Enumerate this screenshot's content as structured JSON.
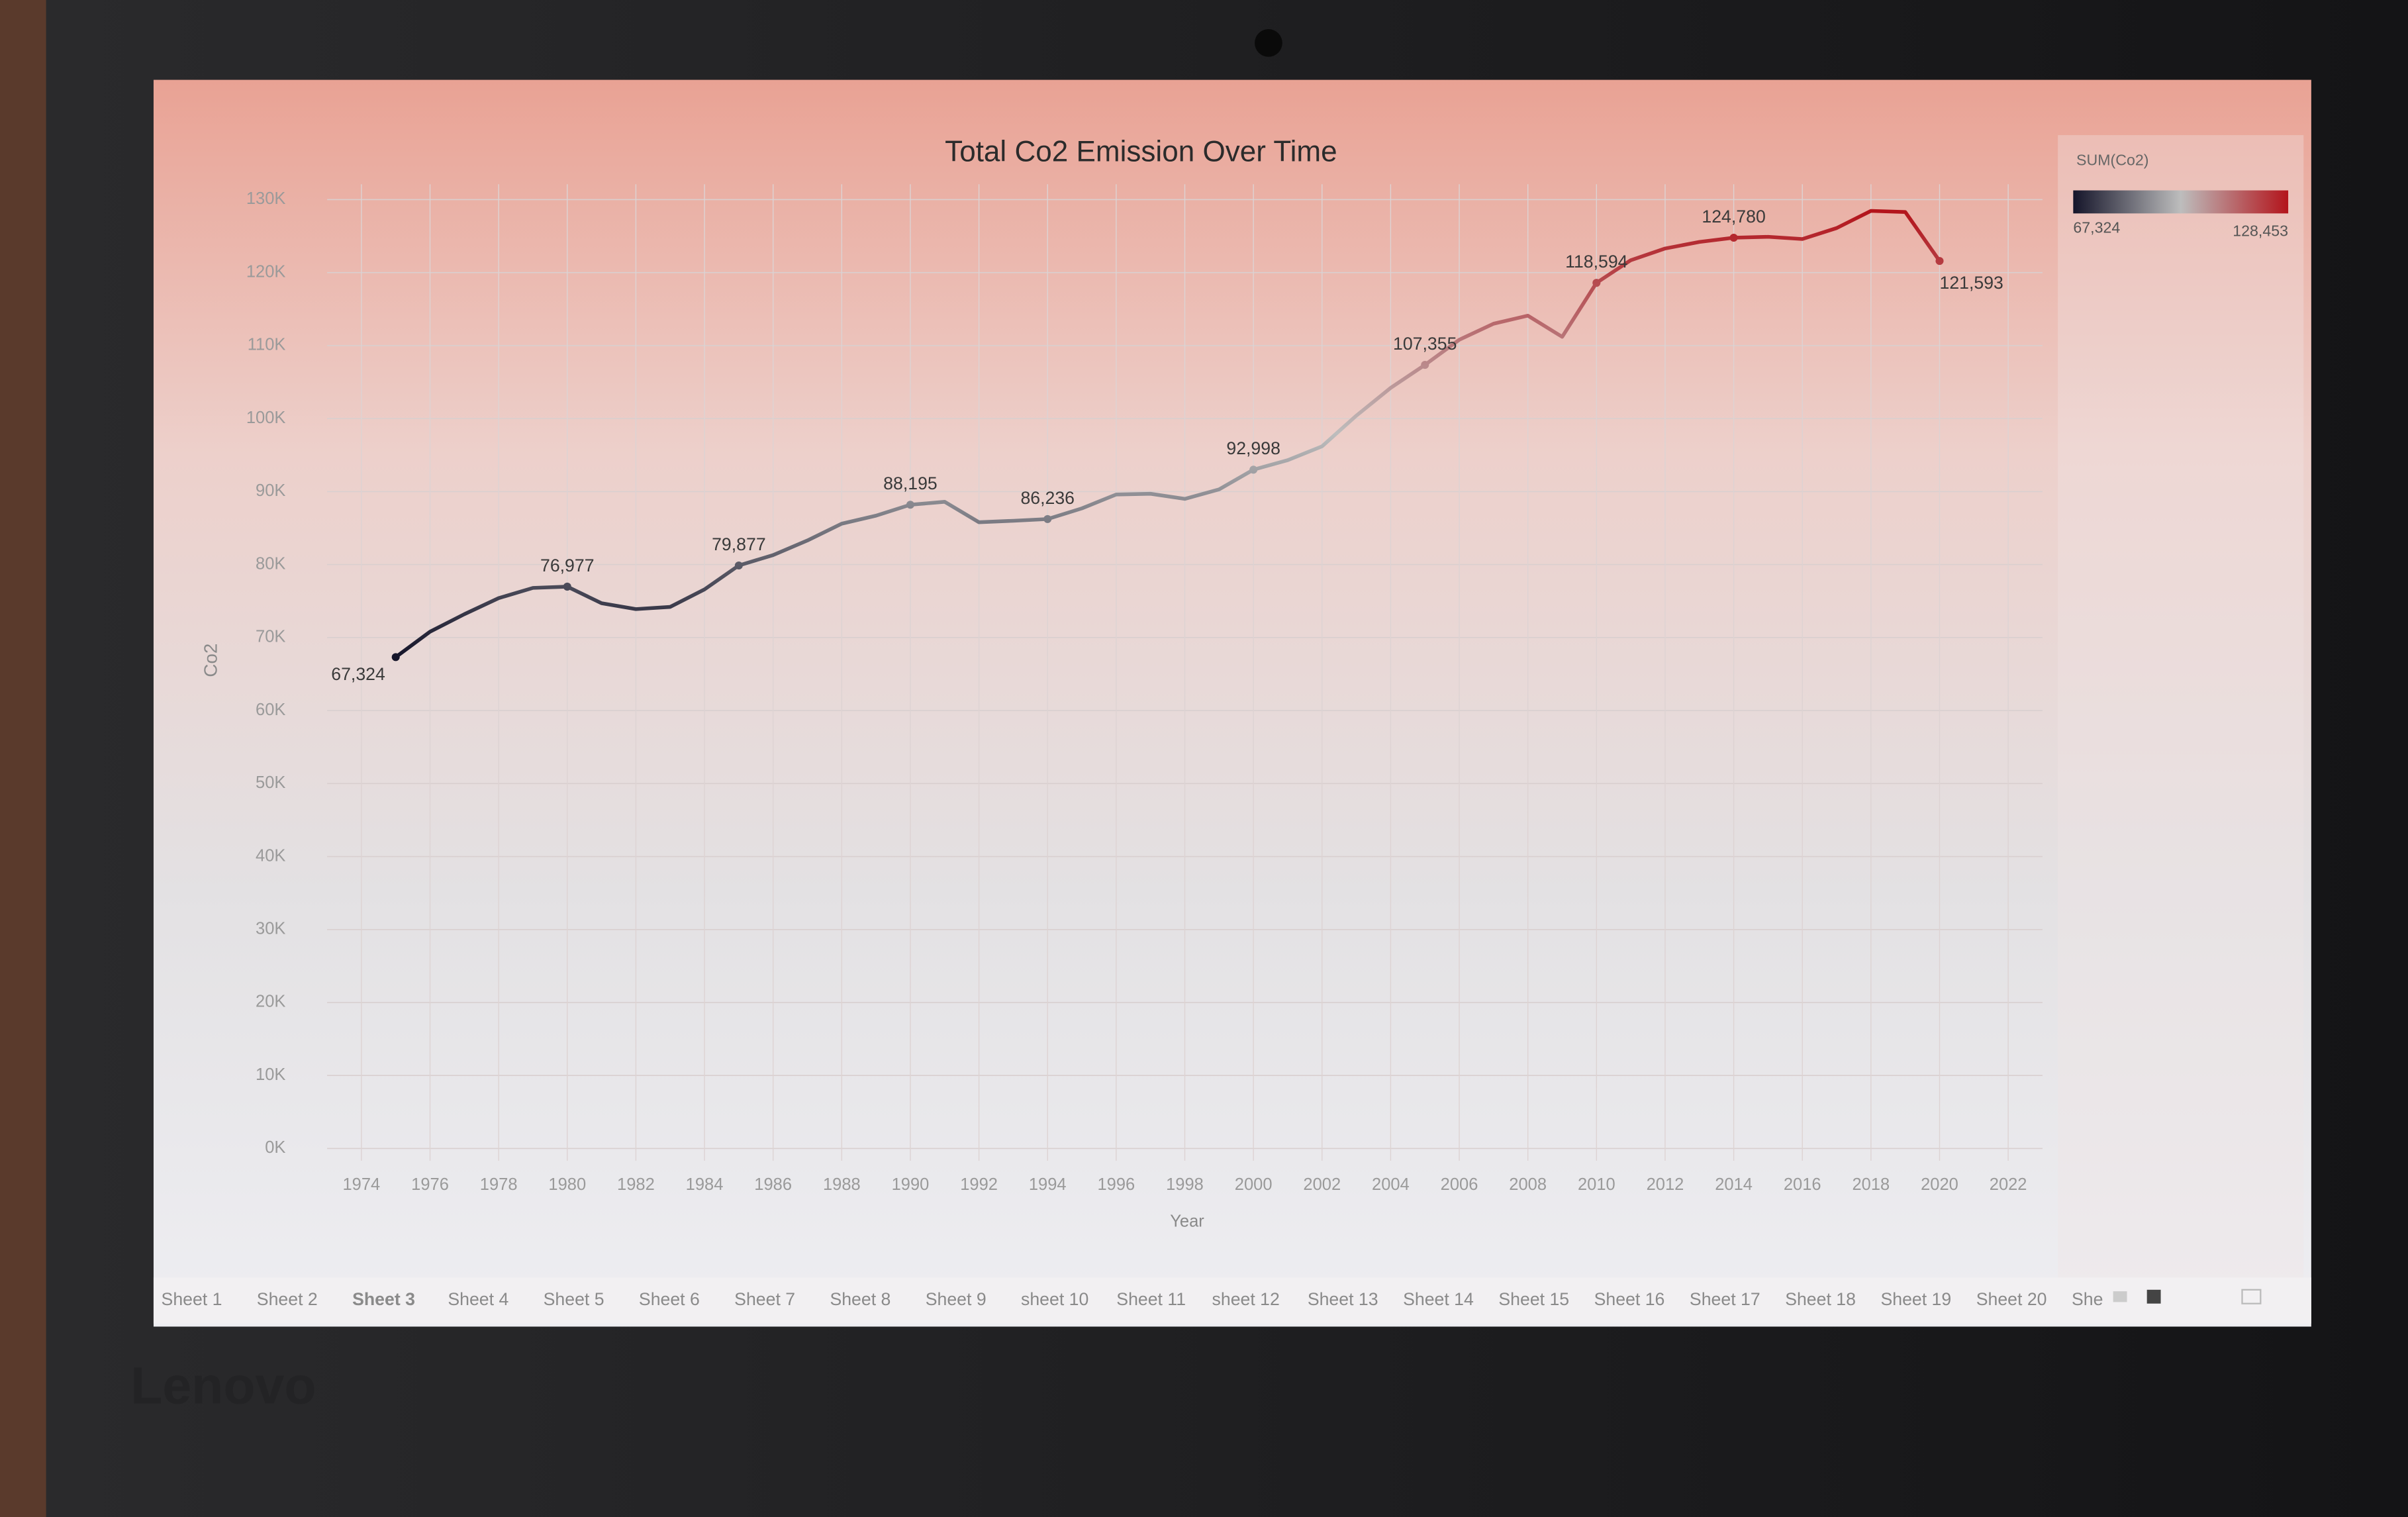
{
  "chart_data": {
    "type": "line",
    "title": "Total Co2 Emission Over Time",
    "x_label": "Year",
    "y_label": "Co2",
    "x": [
      1975,
      1976,
      1977,
      1978,
      1979,
      1980,
      1981,
      1982,
      1983,
      1984,
      1985,
      1986,
      1987,
      1988,
      1989,
      1990,
      1991,
      1992,
      1993,
      1994,
      1995,
      1996,
      1997,
      1998,
      1999,
      2000,
      2001,
      2002,
      2003,
      2004,
      2005,
      2006,
      2007,
      2008,
      2009,
      2010,
      2011,
      2012,
      2013,
      2014,
      2015,
      2016,
      2017,
      2018,
      2019,
      2020
    ],
    "values": [
      67324,
      70800,
      73200,
      75400,
      76800,
      76977,
      74700,
      73900,
      74200,
      76600,
      79877,
      81300,
      83300,
      85600,
      86700,
      88195,
      88600,
      85800,
      86000,
      86236,
      87700,
      89600,
      89700,
      89000,
      90300,
      92998,
      94300,
      96200,
      100400,
      104200,
      107355,
      110800,
      113000,
      114100,
      111200,
      118594,
      121700,
      123300,
      124200,
      124780,
      124900,
      124600,
      126100,
      128453,
      128300,
      121593
    ],
    "value_labels": [
      "67,324",
      null,
      null,
      null,
      null,
      "76,977",
      null,
      null,
      null,
      null,
      "79,877",
      null,
      null,
      null,
      null,
      "88,195",
      null,
      null,
      null,
      "86,236",
      null,
      null,
      null,
      null,
      null,
      "92,998",
      null,
      null,
      null,
      null,
      "107,355",
      null,
      null,
      null,
      null,
      "118,594",
      null,
      null,
      null,
      "124,780",
      null,
      null,
      null,
      null,
      null,
      "121,593"
    ],
    "xlim": [
      1973,
      2023
    ],
    "xticks": [
      1974,
      1976,
      1978,
      1980,
      1982,
      1984,
      1986,
      1988,
      1990,
      1992,
      1994,
      1996,
      1998,
      2000,
      2002,
      2004,
      2006,
      2008,
      2010,
      2012,
      2014,
      2016,
      2018,
      2020,
      2022
    ],
    "ylim": [
      0,
      130000
    ],
    "yticks": [
      {
        "value": 0,
        "label": "0K"
      },
      {
        "value": 10000,
        "label": "10K"
      },
      {
        "value": 20000,
        "label": "20K"
      },
      {
        "value": 30000,
        "label": "30K"
      },
      {
        "value": 40000,
        "label": "40K"
      },
      {
        "value": 50000,
        "label": "50K"
      },
      {
        "value": 60000,
        "label": "60K"
      },
      {
        "value": 70000,
        "label": "70K"
      },
      {
        "value": 80000,
        "label": "80K"
      },
      {
        "value": 90000,
        "label": "90K"
      },
      {
        "value": 100000,
        "label": "100K"
      },
      {
        "value": 110000,
        "label": "110K"
      },
      {
        "value": 120000,
        "label": "120K"
      },
      {
        "value": 130000,
        "label": "130K"
      }
    ],
    "grid": true,
    "legend": {
      "title": "SUM(Co2)",
      "position": "top-right",
      "min": {
        "value": 67324,
        "label": "67,324"
      },
      "max": {
        "value": 128453,
        "label": "128,453"
      },
      "colors": [
        "#15152a",
        "#bdbdbd",
        "#b3141b"
      ]
    }
  },
  "tabs": {
    "names": [
      "Sheet 1",
      "Sheet 2",
      "Sheet 3",
      "Sheet 4",
      "Sheet 5",
      "Sheet 6",
      "Sheet 7",
      "Sheet 8",
      "Sheet 9",
      "sheet 10",
      "Sheet 11",
      "sheet 12",
      "Sheet 13",
      "Sheet 14",
      "Sheet 15",
      "Sheet 16",
      "Sheet 17",
      "Sheet 18",
      "Sheet 19",
      "Sheet 20",
      "She"
    ],
    "active": 2
  },
  "device": {
    "brand": "Lenovo"
  }
}
